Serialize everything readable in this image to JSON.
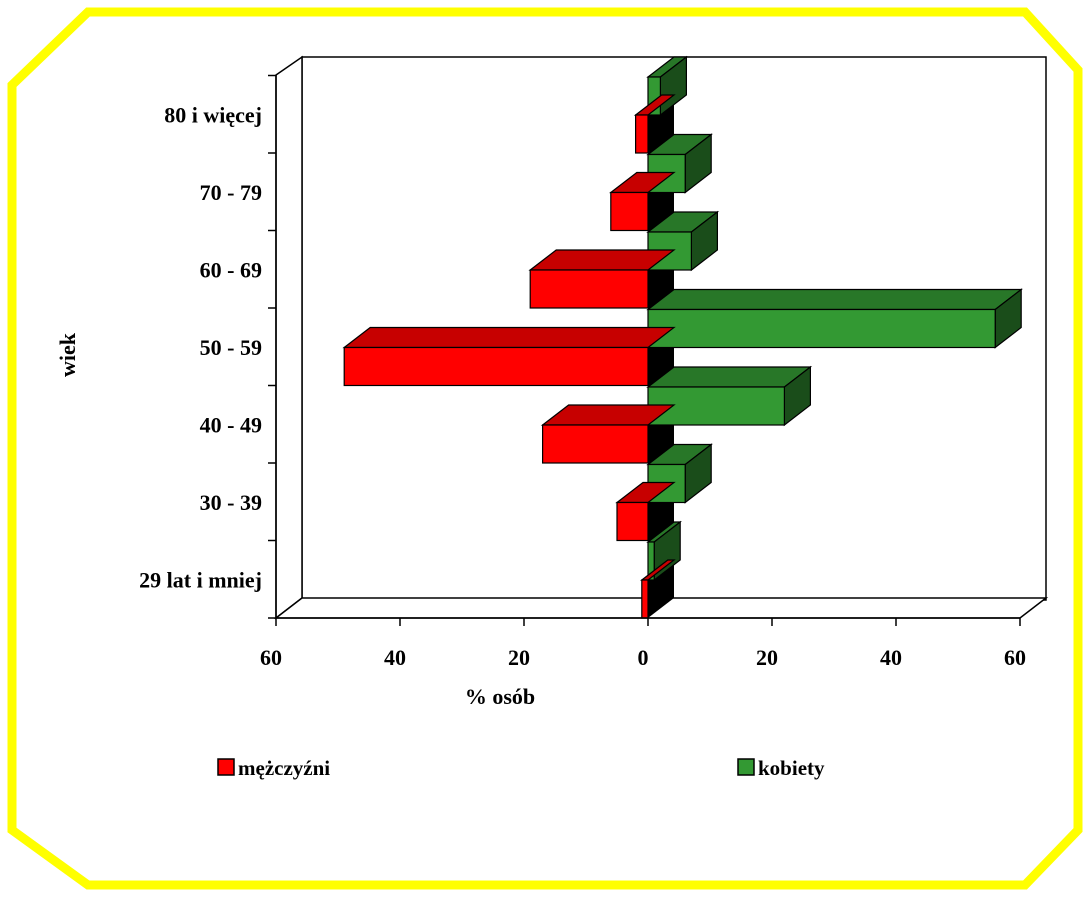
{
  "chart_data": {
    "type": "bar",
    "orientation": "horizontal",
    "style": "population-pyramid-3d",
    "categories": [
      "29 lat i mniej",
      "30 - 39",
      "40 - 49",
      "50 - 59",
      "60 - 69",
      "70 - 79",
      "80 i więcej"
    ],
    "series": [
      {
        "name": "mężczyźni",
        "side": "left",
        "color": "#ff0000",
        "values": [
          1,
          5,
          17,
          49,
          19,
          6,
          2
        ]
      },
      {
        "name": "kobiety",
        "side": "right",
        "color": "#339933",
        "values": [
          1,
          6,
          22,
          56,
          7,
          6,
          2
        ]
      }
    ],
    "x_tick_labels": [
      "60",
      "40",
      "20",
      "0",
      "20",
      "40",
      "60"
    ],
    "xlim": [
      -60,
      60
    ],
    "xlabel": "% osób",
    "ylabel": "wiek",
    "grid": false,
    "legend_position": "bottom",
    "frame_color": "#ffff00"
  }
}
